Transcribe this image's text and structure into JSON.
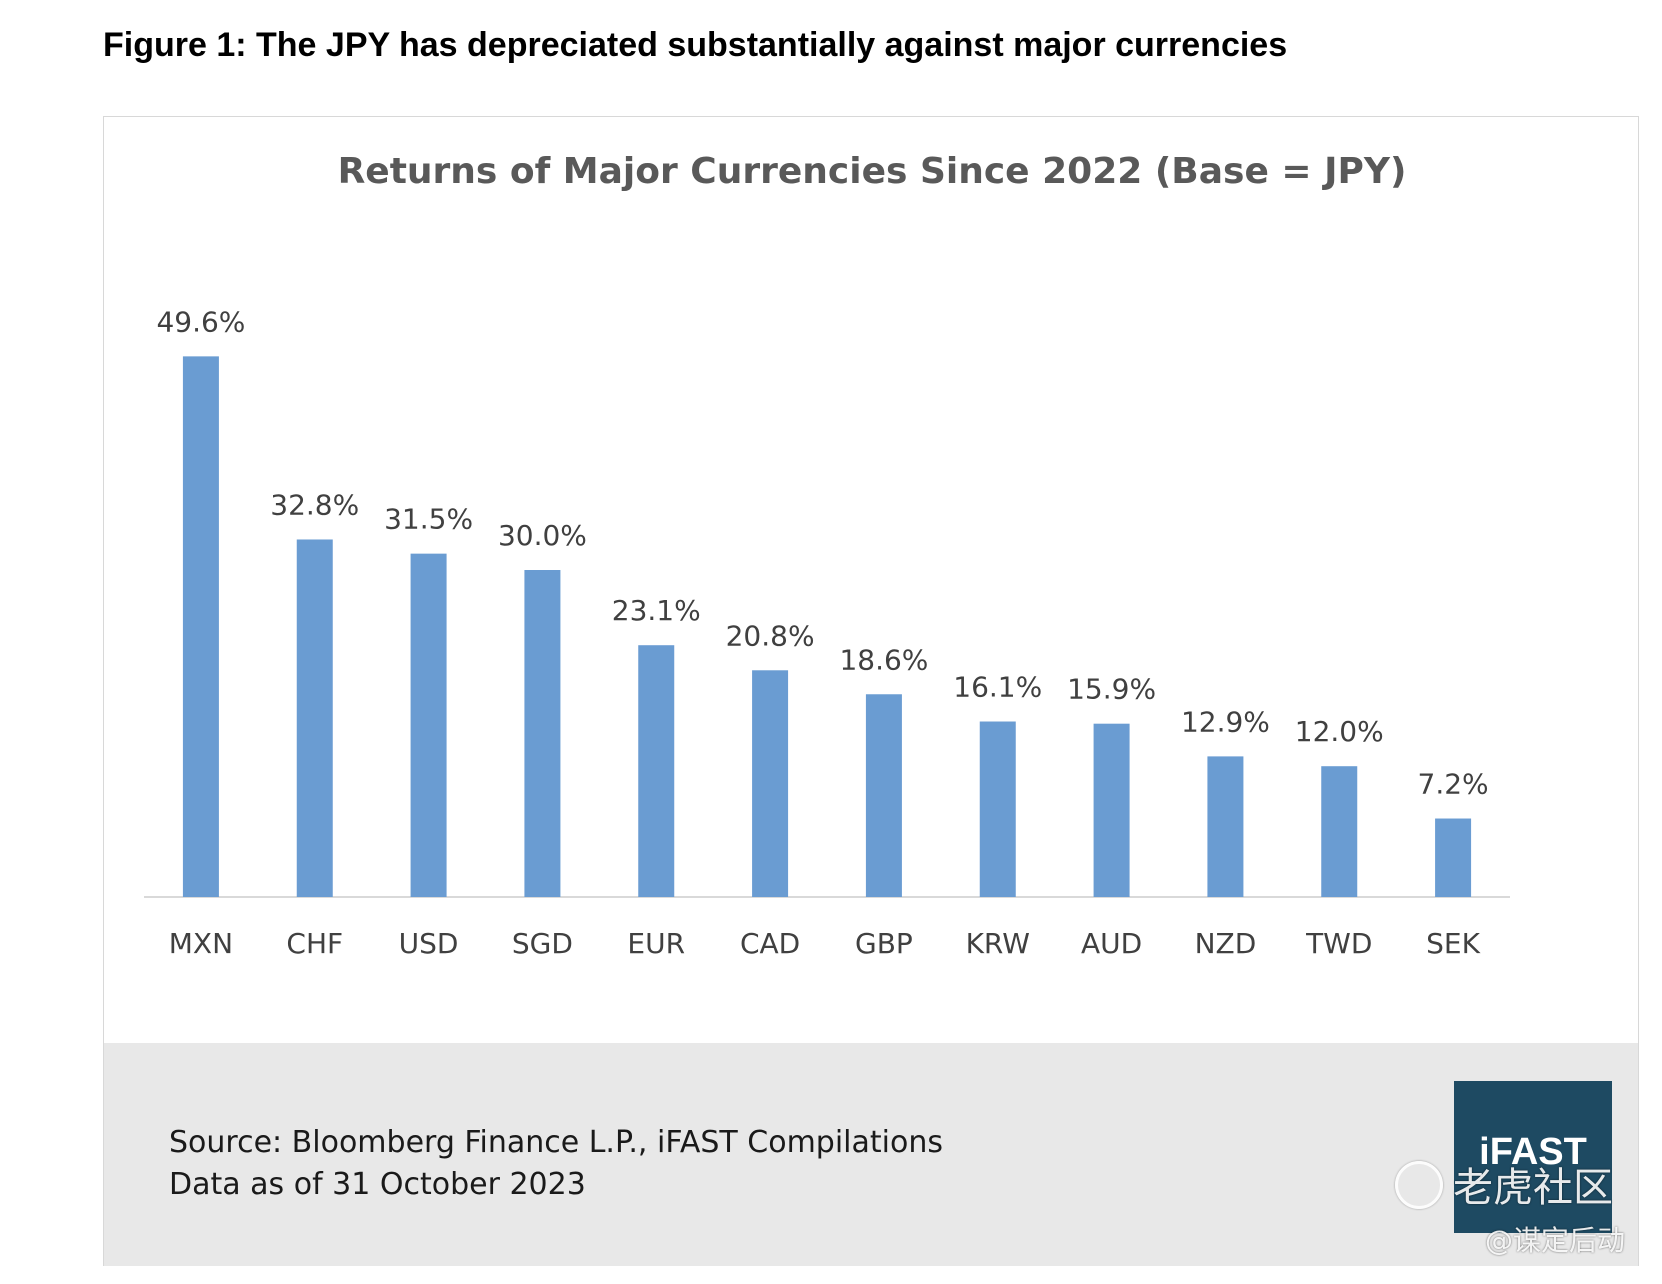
{
  "figure_caption": "Figure 1: The JPY has depreciated substantially against major currencies",
  "footer": {
    "source": "Source: Bloomberg Finance L.P., iFAST Compilations",
    "date": "Data as of 31 October 2023"
  },
  "logo": {
    "text": "iFAST",
    "background": "#1e4a62"
  },
  "watermark": {
    "main": "老虎社区",
    "sub": "@谋定后动"
  },
  "colors": {
    "bar": "#6a9cd2",
    "axis": "#d9d9d9",
    "label_text": "#404040",
    "footer_band": "#e8e8e8"
  },
  "chart_data": {
    "type": "bar",
    "title": "Returns of Major Currencies Since 2022 (Base = JPY)",
    "categories": [
      "MXN",
      "CHF",
      "USD",
      "SGD",
      "EUR",
      "CAD",
      "GBP",
      "KRW",
      "AUD",
      "NZD",
      "TWD",
      "SEK"
    ],
    "values": [
      49.6,
      32.8,
      31.5,
      30.0,
      23.1,
      20.8,
      18.6,
      16.1,
      15.9,
      12.9,
      12.0,
      7.2
    ],
    "data_labels": [
      "49.6%",
      "32.8%",
      "31.5%",
      "30.0%",
      "23.1%",
      "20.8%",
      "18.6%",
      "16.1%",
      "15.9%",
      "12.9%",
      "12.0%",
      "7.2%"
    ],
    "xlabel": "",
    "ylabel": "",
    "ylim": [
      0,
      50
    ],
    "grid": false,
    "legend": "none"
  }
}
